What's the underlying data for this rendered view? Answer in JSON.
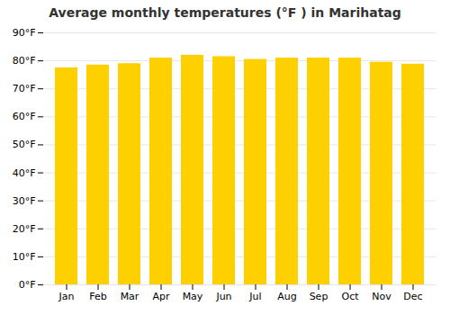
{
  "chart_data": {
    "type": "bar",
    "title": "Average monthly temperatures (°F ) in Marihatag",
    "categories": [
      "Jan",
      "Feb",
      "Mar",
      "Apr",
      "May",
      "Jun",
      "Jul",
      "Aug",
      "Sep",
      "Oct",
      "Nov",
      "Dec"
    ],
    "values": [
      77.5,
      78.5,
      79.0,
      81.0,
      82.0,
      81.5,
      80.5,
      81.0,
      81.0,
      81.0,
      79.5,
      78.8
    ],
    "color": "#FFD000",
    "ylim": [
      0,
      90
    ],
    "yticks": [
      {
        "value": 0,
        "label": "0°F"
      },
      {
        "value": 10,
        "label": "10°F"
      },
      {
        "value": 20,
        "label": "20°F"
      },
      {
        "value": 30,
        "label": "30°F"
      },
      {
        "value": 40,
        "label": "40°F"
      },
      {
        "value": 50,
        "label": "50°F"
      },
      {
        "value": 60,
        "label": "60°F"
      },
      {
        "value": 70,
        "label": "70°F"
      },
      {
        "value": 80,
        "label": "80°F"
      },
      {
        "value": 90,
        "label": "90°F"
      }
    ],
    "grid": true
  }
}
